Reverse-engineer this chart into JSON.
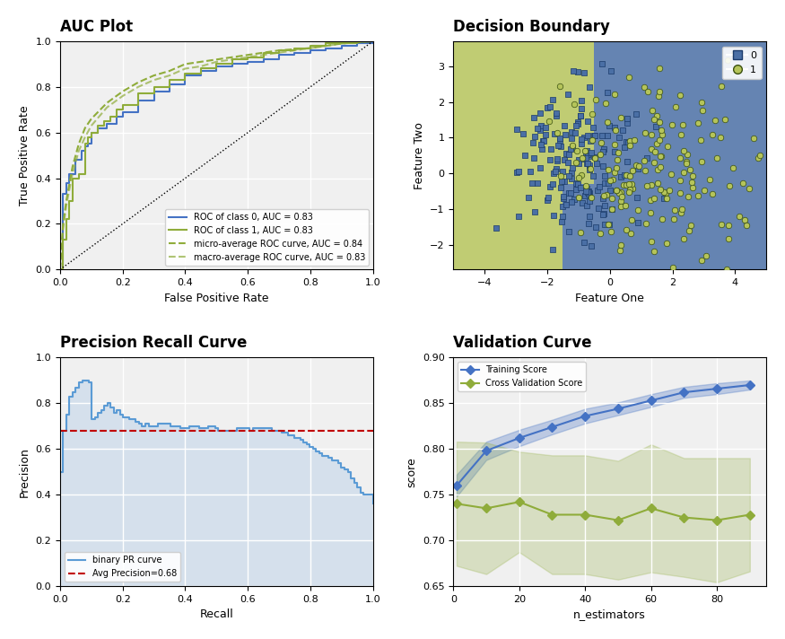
{
  "fig_width": 8.75,
  "fig_height": 7.12,
  "fig_dpi": 100,
  "auc_title": "AUC Plot",
  "auc_xlabel": "False Positive Rate",
  "auc_ylabel": "True Positive Rate",
  "db_title": "Decision Boundary",
  "db_xlabel": "Feature One",
  "db_ylabel": "Feature Two",
  "db_class0_color": "#4a6fa5",
  "db_class1_color": "#b5c45a",
  "pr_title": "Precision Recall Curve",
  "pr_xlabel": "Recall",
  "pr_ylabel": "Precision",
  "pr_avg_precision": 0.68,
  "pr_line_color": "#5b9bd5",
  "pr_fill_color": "#aec8e8",
  "pr_avg_color": "#c00000",
  "vc_title": "Validation Curve",
  "vc_xlabel": "n_estimators",
  "vc_ylabel": "score",
  "vc_train_color": "#4472c4",
  "vc_cv_color": "#8fac3a",
  "vc_train_label": "Training Score",
  "vc_cv_label": "Cross Validation Score",
  "vc_x": [
    1,
    10,
    20,
    30,
    40,
    50,
    60,
    70,
    80,
    90
  ],
  "vc_train_mean": [
    0.76,
    0.798,
    0.812,
    0.824,
    0.836,
    0.844,
    0.853,
    0.862,
    0.866,
    0.87
  ],
  "vc_train_std": [
    0.012,
    0.01,
    0.009,
    0.008,
    0.008,
    0.007,
    0.007,
    0.006,
    0.006,
    0.005
  ],
  "vc_cv_mean": [
    0.74,
    0.735,
    0.742,
    0.728,
    0.728,
    0.722,
    0.735,
    0.725,
    0.722,
    0.728
  ],
  "vc_cv_std": [
    0.068,
    0.072,
    0.055,
    0.065,
    0.065,
    0.065,
    0.07,
    0.065,
    0.068,
    0.062
  ]
}
